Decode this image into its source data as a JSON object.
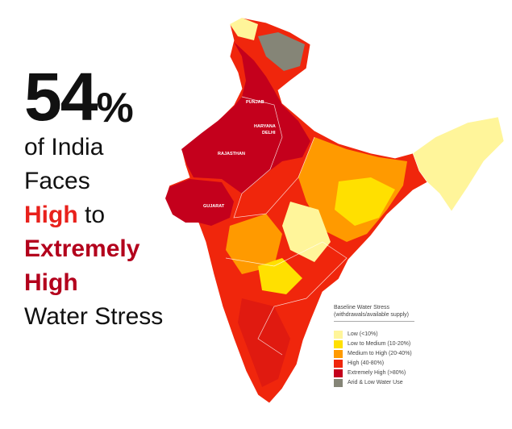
{
  "headline": {
    "percent": "54",
    "percent_sign": "%",
    "line1": "of India",
    "line2": "Faces",
    "high": "High",
    "to": " to",
    "extremely": "Extremely",
    "high2": "High",
    "line_last": "Water Stress"
  },
  "map": {
    "labels": [
      "PUNJAB",
      "HARYANA",
      "DELHI",
      "RAJASTHAN",
      "GUJARAT"
    ]
  },
  "legend": {
    "title": "Baseline Water Stress",
    "subtitle": "(withdrawals/available supply)",
    "items": [
      {
        "label": "Low (<10%)",
        "color": "#fff59a"
      },
      {
        "label": "Low to Medium (10-20%)",
        "color": "#ffe000"
      },
      {
        "label": "Medium to High (20-40%)",
        "color": "#ff9a00"
      },
      {
        "label": "High (40-80%)",
        "color": "#f0260c"
      },
      {
        "label": "Extremely High (>80%)",
        "color": "#c4001c"
      },
      {
        "label": "Arid & Low Water Use",
        "color": "#858577"
      }
    ]
  }
}
